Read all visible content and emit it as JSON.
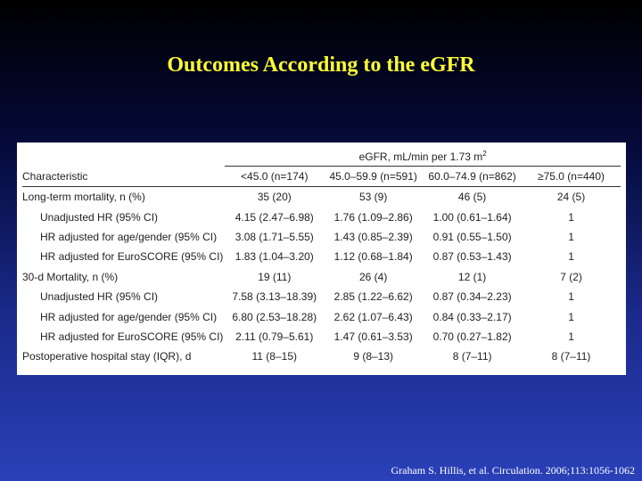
{
  "title": "Outcomes According to the eGFR",
  "table": {
    "group_header": "eGFR, mL/min per 1.73 m",
    "group_header_sup": "2",
    "columns": [
      "Characteristic",
      "<45.0 (n=174)",
      "45.0–59.9 (n=591)",
      "60.0–74.9 (n=862)",
      "≥75.0 (n=440)"
    ],
    "rows": [
      {
        "label": "Long-term mortality, n (%)",
        "indent": false,
        "values": [
          "35 (20)",
          "53 (9)",
          "46 (5)",
          "24 (5)"
        ]
      },
      {
        "label": "Unadjusted HR (95% CI)",
        "indent": true,
        "values": [
          "4.15 (2.47–6.98)",
          "1.76 (1.09–2.86)",
          "1.00 (0.61–1.64)",
          "1"
        ]
      },
      {
        "label": "HR adjusted for age/gender (95% CI)",
        "indent": true,
        "values": [
          "3.08 (1.71–5.55)",
          "1.43 (0.85–2.39)",
          "0.91 (0.55–1.50)",
          "1"
        ]
      },
      {
        "label": "HR adjusted for EuroSCORE (95% CI)",
        "indent": true,
        "values": [
          "1.83 (1.04–3.20)",
          "1.12 (0.68–1.84)",
          "0.87 (0.53–1.43)",
          "1"
        ]
      },
      {
        "label": "30-d Mortality, n (%)",
        "indent": false,
        "values": [
          "19 (11)",
          "26 (4)",
          "12 (1)",
          "7 (2)"
        ]
      },
      {
        "label": "Unadjusted HR (95% CI)",
        "indent": true,
        "values": [
          "7.58 (3.13–18.39)",
          "2.85 (1.22–6.62)",
          "0.87 (0.34–2.23)",
          "1"
        ]
      },
      {
        "label": "HR adjusted for age/gender (95% CI)",
        "indent": true,
        "values": [
          "6.80 (2.53–18.28)",
          "2.62 (1.07–6.43)",
          "0.84 (0.33–2.17)",
          "1"
        ]
      },
      {
        "label": "HR adjusted for EuroSCORE (95% CI)",
        "indent": true,
        "values": [
          "2.11 (0.79–5.61)",
          "1.47 (0.61–3.53)",
          "0.70 (0.27–1.82)",
          "1"
        ]
      },
      {
        "label": "Postoperative hospital stay (IQR), d",
        "indent": false,
        "values": [
          "11 (8–15)",
          "9 (8–13)",
          "8 (7–11)",
          "8 (7–11)"
        ]
      }
    ]
  },
  "citation": "Graham S. Hillis, et al. Circulation. 2006;113:1056-1062",
  "colors": {
    "title": "#ffff33",
    "citation": "#ffffff",
    "table_bg": "#ffffff"
  }
}
